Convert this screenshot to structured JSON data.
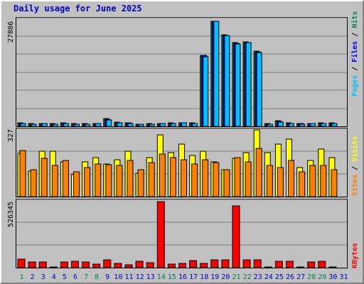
{
  "title": "Daily usage for June 2025",
  "colors": {
    "hits": "#00805c",
    "files": "#0000ff",
    "pages": "#00c0ff",
    "visits": "#ffff00",
    "sites": "#ff8000",
    "kbytes": "#ff0000",
    "weekend_day": "#00805c",
    "weekday": "#0000c0"
  },
  "right_labels": {
    "hits": "Hits",
    "files": "Files",
    "pages": "Pages",
    "visits": "Visits",
    "sites": "Sites",
    "kbytes": "KBytes",
    "sep": " / "
  },
  "chart_data": [
    {
      "type": "bar",
      "name": "hits-files-pages",
      "y_max_label": "27806",
      "ylim": [
        0,
        27806
      ],
      "categories": [
        "1",
        "2",
        "3",
        "4",
        "5",
        "6",
        "7",
        "8",
        "9",
        "10",
        "11",
        "12",
        "13",
        "14",
        "15",
        "16",
        "17",
        "18",
        "19",
        "20",
        "21",
        "22",
        "23",
        "24",
        "25",
        "26",
        "27",
        "28",
        "29",
        "30",
        "31"
      ],
      "series": [
        {
          "name": "Hits",
          "values": [
            900,
            700,
            800,
            700,
            900,
            700,
            700,
            800,
            2000,
            1100,
            1000,
            600,
            700,
            800,
            900,
            1000,
            900,
            18800,
            27800,
            24200,
            22100,
            22300,
            19900,
            700,
            1500,
            900,
            800,
            800,
            900,
            900,
            0
          ]
        },
        {
          "name": "Files",
          "values": [
            800,
            600,
            700,
            600,
            800,
            600,
            600,
            700,
            1800,
            1000,
            900,
            500,
            600,
            700,
            800,
            900,
            800,
            18700,
            27800,
            24100,
            22000,
            22200,
            19800,
            600,
            1300,
            800,
            700,
            700,
            800,
            800,
            0
          ]
        },
        {
          "name": "Pages",
          "values": [
            800,
            500,
            700,
            600,
            700,
            600,
            600,
            700,
            1600,
            900,
            800,
            500,
            600,
            700,
            800,
            900,
            700,
            18500,
            27800,
            24000,
            21800,
            22100,
            19600,
            600,
            1200,
            700,
            600,
            700,
            700,
            800,
            0
          ]
        }
      ]
    },
    {
      "type": "bar",
      "name": "visits-sites",
      "y_max_label": "327",
      "ylim": [
        0,
        327
      ],
      "categories": [
        "1",
        "2",
        "3",
        "4",
        "5",
        "6",
        "7",
        "8",
        "9",
        "10",
        "11",
        "12",
        "13",
        "14",
        "15",
        "16",
        "17",
        "18",
        "19",
        "20",
        "21",
        "22",
        "23",
        "24",
        "25",
        "26",
        "27",
        "28",
        "29",
        "30",
        "31"
      ],
      "series": [
        {
          "name": "Visits",
          "values": [
            210,
            125,
            220,
            220,
            170,
            105,
            170,
            190,
            160,
            180,
            220,
            115,
            190,
            300,
            215,
            255,
            200,
            220,
            170,
            130,
            185,
            215,
            325,
            215,
            255,
            280,
            140,
            175,
            230,
            190,
            0
          ]
        },
        {
          "name": "Sites",
          "values": [
            225,
            130,
            185,
            150,
            175,
            120,
            140,
            160,
            155,
            150,
            175,
            130,
            165,
            205,
            190,
            180,
            160,
            180,
            165,
            130,
            190,
            170,
            235,
            150,
            140,
            175,
            120,
            150,
            150,
            130,
            0
          ]
        }
      ]
    },
    {
      "type": "bar",
      "name": "kbytes",
      "y_max_label": "526345",
      "ylim": [
        0,
        526345
      ],
      "categories": [
        "1",
        "2",
        "3",
        "4",
        "5",
        "6",
        "7",
        "8",
        "9",
        "10",
        "11",
        "12",
        "13",
        "14",
        "15",
        "16",
        "17",
        "18",
        "19",
        "20",
        "21",
        "22",
        "23",
        "24",
        "25",
        "26",
        "27",
        "28",
        "29",
        "30",
        "31"
      ],
      "series": [
        {
          "name": "KBytes",
          "values": [
            68000,
            48000,
            46000,
            8000,
            45000,
            52000,
            45000,
            28000,
            60000,
            33000,
            22000,
            52000,
            40000,
            526345,
            30000,
            32000,
            57000,
            32000,
            62000,
            65000,
            492000,
            63000,
            60000,
            8000,
            52000,
            52000,
            8000,
            48000,
            52000,
            8000,
            0
          ]
        }
      ]
    }
  ],
  "x_axis": {
    "labels": [
      "1",
      "2",
      "3",
      "4",
      "5",
      "6",
      "7",
      "8",
      "9",
      "10",
      "11",
      "12",
      "13",
      "14",
      "15",
      "16",
      "17",
      "18",
      "19",
      "20",
      "21",
      "22",
      "23",
      "24",
      "25",
      "26",
      "27",
      "28",
      "29",
      "30",
      "31"
    ],
    "weekend": [
      1,
      0,
      0,
      0,
      0,
      0,
      1,
      1,
      0,
      0,
      0,
      0,
      0,
      1,
      1,
      0,
      0,
      0,
      0,
      0,
      1,
      1,
      0,
      0,
      0,
      0,
      0,
      1,
      1,
      0,
      0
    ]
  }
}
